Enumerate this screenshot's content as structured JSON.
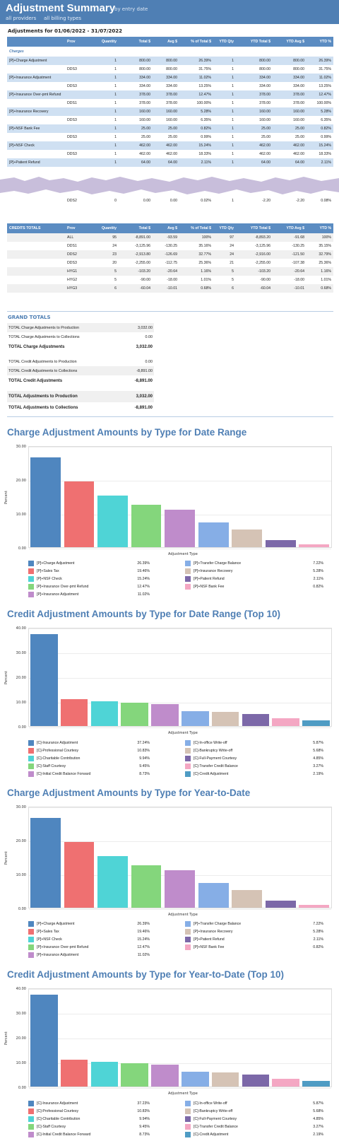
{
  "header": {
    "title": "Adjustment Summary",
    "subtitle": "by entry date",
    "filter1": "all providers",
    "filter2": "all billing types"
  },
  "range": "Adjustments for 01/06/2022 - 31/07/2022",
  "columns": [
    "",
    "Prov",
    "Quantity",
    "Total $",
    "Avg $",
    "% of Total $",
    "YTD Qty",
    "YTD Total $",
    "YTD Avg $",
    "YTD %"
  ],
  "charges_label": "Charges",
  "charge_rows": [
    {
      "kind": "grp",
      "cells": [
        "[P]+Charge Adjustment",
        "",
        "1",
        "800.00",
        "800.00",
        "26.39%",
        "1",
        "800.00",
        "800.00",
        "26.39%"
      ]
    },
    {
      "kind": "sub",
      "cells": [
        "",
        "DDS3",
        "1",
        "800.00",
        "800.00",
        "31.75%",
        "1",
        "800.00",
        "800.00",
        "31.75%"
      ]
    },
    {
      "kind": "grp",
      "cells": [
        "[P]+Insurance Adjustment",
        "",
        "1",
        "334.00",
        "334.00",
        "11.02%",
        "1",
        "334.00",
        "334.00",
        "11.02%"
      ]
    },
    {
      "kind": "sub",
      "cells": [
        "",
        "DDS3",
        "1",
        "334.00",
        "334.00",
        "13.25%",
        "1",
        "334.00",
        "334.00",
        "13.25%"
      ]
    },
    {
      "kind": "grp",
      "cells": [
        "[P]+Insurance Over-pmt Refund",
        "",
        "1",
        "378.00",
        "378.00",
        "12.47%",
        "1",
        "378.00",
        "378.00",
        "12.47%"
      ]
    },
    {
      "kind": "sub",
      "cells": [
        "",
        "DDS1",
        "1",
        "378.00",
        "378.00",
        "100.00%",
        "1",
        "378.00",
        "378.00",
        "100.00%"
      ]
    },
    {
      "kind": "grp",
      "cells": [
        "[P]+Insurance Recovery",
        "",
        "1",
        "160.00",
        "160.00",
        "5.28%",
        "1",
        "160.00",
        "160.00",
        "5.28%"
      ]
    },
    {
      "kind": "sub",
      "cells": [
        "",
        "DDS3",
        "1",
        "160.00",
        "160.00",
        "6.35%",
        "1",
        "160.00",
        "160.00",
        "6.35%"
      ]
    },
    {
      "kind": "grp",
      "cells": [
        "[P]+NSF Bank Fee",
        "",
        "1",
        "25.00",
        "25.00",
        "0.82%",
        "1",
        "25.00",
        "25.00",
        "0.82%"
      ]
    },
    {
      "kind": "sub",
      "cells": [
        "",
        "DDS3",
        "1",
        "25.00",
        "25.00",
        "0.99%",
        "1",
        "25.00",
        "25.00",
        "0.99%"
      ]
    },
    {
      "kind": "grp",
      "cells": [
        "[P]+NSF Check",
        "",
        "1",
        "462.00",
        "462.00",
        "15.24%",
        "1",
        "462.00",
        "462.00",
        "15.24%"
      ]
    },
    {
      "kind": "sub",
      "cells": [
        "",
        "DDS3",
        "1",
        "462.00",
        "462.00",
        "18.33%",
        "1",
        "462.00",
        "462.00",
        "18.33%"
      ]
    },
    {
      "kind": "grp",
      "cells": [
        "[P]+Patient Refund",
        "",
        "1",
        "64.00",
        "64.00",
        "2.11%",
        "1",
        "64.00",
        "64.00",
        "2.11%"
      ]
    }
  ],
  "tail_row": [
    "",
    "DDS2",
    "0",
    "0.00",
    "0.00",
    "0.02%",
    "1",
    "-2.20",
    "-2.20",
    "0.08%"
  ],
  "credits_header": [
    "CREDITS TOTALS",
    "Prov",
    "Quantity",
    "Total $",
    "Avg $",
    "% of Total $",
    "YTD Qty",
    "YTD Total $",
    "YTD Avg $",
    "YTD %"
  ],
  "credit_rows": [
    [
      "",
      "ALL",
      "95",
      "-8,891.00",
      "-93.59",
      "100%",
      "97",
      "-8,893.20",
      "-91.68",
      "100%"
    ],
    [
      "",
      "DDS1",
      "24",
      "-3,125.96",
      "-130.25",
      "35.16%",
      "24",
      "-3,125.96",
      "-130.25",
      "35.15%"
    ],
    [
      "",
      "DDS2",
      "23",
      "-2,913.80",
      "-126.69",
      "32.77%",
      "24",
      "-2,916.00",
      "-121.50",
      "32.79%"
    ],
    [
      "",
      "DDS3",
      "20",
      "-2,255.00",
      "-112.75",
      "25.36%",
      "21",
      "-2,255.00",
      "-107.38",
      "25.36%"
    ],
    [
      "",
      "HYG1",
      "5",
      "-103.20",
      "-20.64",
      "1.16%",
      "5",
      "-103.20",
      "-20.64",
      "1.16%"
    ],
    [
      "",
      "HYG2",
      "5",
      "-90.00",
      "-18.00",
      "1.01%",
      "5",
      "-90.00",
      "-18.00",
      "1.01%"
    ],
    [
      "",
      "HYG3",
      "6",
      "-60.04",
      "-10.01",
      "0.68%",
      "6",
      "-60.04",
      "-10.01",
      "0.68%"
    ]
  ],
  "grand_totals": {
    "title": "GRAND TOTALS",
    "rows": [
      {
        "kind": "s",
        "label": "TOTAL Charge Adjustments to Production",
        "value": "3,032.00"
      },
      {
        "kind": "n",
        "label": "TOTAL Charge Adjustments to Collections",
        "value": "0.00"
      },
      {
        "kind": "b",
        "label": "TOTAL Charge Adjustments",
        "value": "3,032.00"
      },
      {
        "kind": "gap",
        "label": "",
        "value": ""
      },
      {
        "kind": "n",
        "label": "TOTAL Credit Adjustments to Production",
        "value": "0.00"
      },
      {
        "kind": "s",
        "label": "TOTAL Credit Adjustments to Collections",
        "value": "-8,891.00"
      },
      {
        "kind": "b",
        "label": "TOTAL Credit Adjustments",
        "value": "-8,891.00"
      },
      {
        "kind": "gap",
        "label": "",
        "value": ""
      },
      {
        "kind": "bs",
        "label": "TOTAL Adjustments to Production",
        "value": "3,032.00"
      },
      {
        "kind": "b",
        "label": "TOTAL Adjustments to Collections",
        "value": "-8,891.00"
      }
    ]
  },
  "chart_data": [
    {
      "type": "bar",
      "title": "Charge Adjustment Amounts by Type for Date Range",
      "ylabel": "Percent",
      "xlabel": "Adjustment Type",
      "ylim": [
        0,
        30
      ],
      "yticks": [
        "0.00",
        "10.00",
        "20.00",
        "30.00"
      ],
      "categories": [
        "[P]+Charge Adjustment",
        "[P]+Sales Tax",
        "[P]+NSF Check",
        "[P]+Insurance Over-pmt Refund",
        "[P]+Insurance Adjustment",
        "[P]+Transfer Charge Balance",
        "[P]+Insurance Recovery",
        "[P]+Patient Refund",
        "[P]+NSF Bank Fee"
      ],
      "values": [
        26.39,
        19.46,
        15.24,
        12.47,
        11.02,
        7.22,
        5.28,
        2.11,
        0.82
      ],
      "labels": [
        "26.39%",
        "19.46%",
        "15.24%",
        "12.47%",
        "11.02%",
        "7.22%",
        "5.28%",
        "2.11%",
        "0.82%"
      ],
      "colors": [
        "#4f86bf",
        "#ef7071",
        "#4fd4d6",
        "#84d67c",
        "#bf8ccb",
        "#86aee6",
        "#d5c3b5",
        "#7c68a8",
        "#f4a7c3"
      ]
    },
    {
      "type": "bar",
      "title": "Credit Adjustment Amounts by Type for Date Range (Top 10)",
      "ylabel": "Percent",
      "xlabel": "Adjustment Type",
      "ylim": [
        0,
        40
      ],
      "yticks": [
        "0.00",
        "10.00",
        "20.00",
        "30.00",
        "40.00"
      ],
      "categories": [
        "[C]-Insurance Adjustment",
        "[C]-Professional Courtesy",
        "[C]-Charitable Contribution",
        "[C]-Staff Courtesy",
        "[C]-Initial Credit Balance Forward",
        "[C]-In-office Write-off",
        "[C]-Bankruptcy Write-off",
        "[C]-Full-Payment Courtesy",
        "[C]-Transfer Credit Balance",
        "[C]-Credit Adjustment"
      ],
      "values": [
        37.24,
        10.83,
        9.94,
        9.45,
        8.73,
        5.87,
        5.68,
        4.85,
        3.27,
        2.19
      ],
      "labels": [
        "37.24%",
        "10.83%",
        "9.94%",
        "9.45%",
        "8.73%",
        "5.87%",
        "5.68%",
        "4.85%",
        "3.27%",
        "2.19%"
      ],
      "colors": [
        "#4f86bf",
        "#ef7071",
        "#4fd4d6",
        "#84d67c",
        "#bf8ccb",
        "#86aee6",
        "#d5c3b5",
        "#7c68a8",
        "#f4a7c3",
        "#4f9cc4"
      ]
    },
    {
      "type": "bar",
      "title": "Charge Adjustment Amounts by Type for Year-to-Date",
      "ylabel": "Percent",
      "xlabel": "Adjustment Type",
      "ylim": [
        0,
        30
      ],
      "yticks": [
        "0.00",
        "10.00",
        "20.00",
        "30.00"
      ],
      "categories": [
        "[P]+Charge Adjustment",
        "[P]+Sales Tax",
        "[P]+NSF Check",
        "[P]+Insurance Over-pmt Refund",
        "[P]+Insurance Adjustment",
        "[P]+Transfer Charge Balance",
        "[P]+Insurance Recovery",
        "[P]+Patient Refund",
        "[P]+NSF Bank Fee"
      ],
      "values": [
        26.39,
        19.46,
        15.24,
        12.47,
        11.02,
        7.22,
        5.28,
        2.11,
        0.82
      ],
      "labels": [
        "26.39%",
        "19.46%",
        "15.24%",
        "12.47%",
        "11.02%",
        "7.22%",
        "5.28%",
        "2.11%",
        "0.82%"
      ],
      "colors": [
        "#4f86bf",
        "#ef7071",
        "#4fd4d6",
        "#84d67c",
        "#bf8ccb",
        "#86aee6",
        "#d5c3b5",
        "#7c68a8",
        "#f4a7c3"
      ]
    },
    {
      "type": "bar",
      "title": "Credit Adjustment Amounts by Type for Year-to-Date (Top 10)",
      "ylabel": "Percent",
      "xlabel": "Adjustment Type",
      "ylim": [
        0,
        40
      ],
      "yticks": [
        "0.00",
        "10.00",
        "20.00",
        "30.00",
        "40.00"
      ],
      "categories": [
        "[C]-Insurance Adjustment",
        "[C]-Professional Courtesy",
        "[C]-Charitable Contribution",
        "[C]-Staff Courtesy",
        "[C]-Initial Credit Balance Forward",
        "[C]-In-office Write-off",
        "[C]-Bankruptcy Write-off",
        "[C]-Full-Payment Courtesy",
        "[C]-Transfer Credit Balance",
        "[C]-Credit Adjustment"
      ],
      "values": [
        37.23,
        10.83,
        9.94,
        9.45,
        8.73,
        5.87,
        5.68,
        4.85,
        3.27,
        2.19
      ],
      "labels": [
        "37.23%",
        "10.83%",
        "9.94%",
        "9.45%",
        "8.73%",
        "5.87%",
        "5.68%",
        "4.85%",
        "3.27%",
        "2.19%"
      ],
      "colors": [
        "#4f86bf",
        "#ef7071",
        "#4fd4d6",
        "#84d67c",
        "#bf8ccb",
        "#86aee6",
        "#d5c3b5",
        "#7c68a8",
        "#f4a7c3",
        "#4f9cc4"
      ]
    }
  ]
}
